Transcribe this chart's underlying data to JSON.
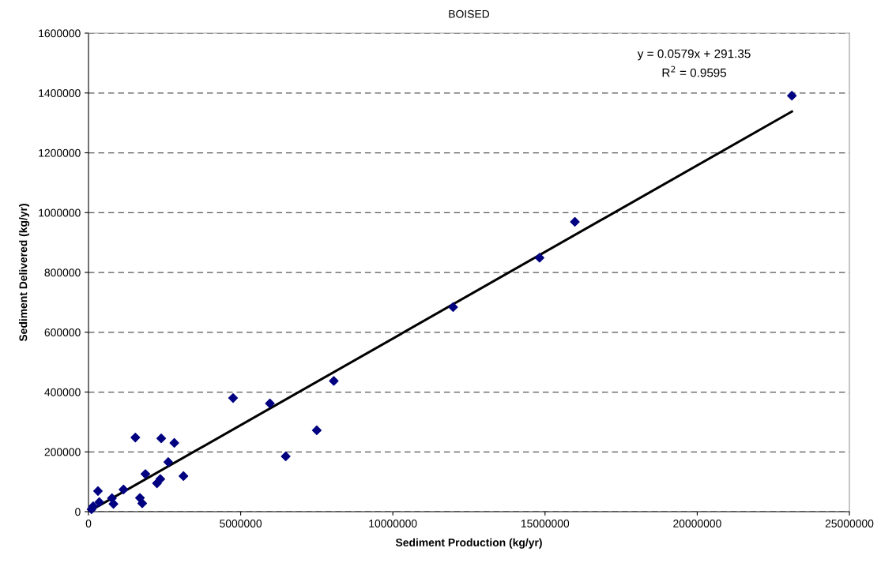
{
  "chart_data": {
    "type": "scatter",
    "title": "BOISED",
    "xlabel": "Sediment Production (kg/yr)",
    "ylabel": "Sediment Delivered (kg/yr)",
    "annotations": [
      "y = 0.0579x + 291.35",
      "R$^{2}$ = 0.9595"
    ],
    "xlim": [
      0,
      25000000
    ],
    "xticks": [
      0,
      5000000,
      10000000,
      15000000,
      20000000,
      25000000
    ],
    "ylim": [
      0,
      1600000
    ],
    "yticks": [
      0,
      200000,
      400000,
      600000,
      800000,
      1000000,
      1200000,
      1400000,
      1600000
    ],
    "grid": "y",
    "marker": "diamond",
    "series": [
      {
        "color": "#000080",
        "x": [
          100000,
          155000,
          311000,
          355000,
          770000,
          820000,
          1150000,
          1540000,
          1690000,
          1765000,
          1870000,
          2250000,
          2360000,
          2390000,
          2620000,
          2820000,
          3120000,
          4750000,
          5960000,
          6480000,
          7500000,
          8060000,
          11980000,
          14820000,
          15980000,
          23110000
        ],
        "values": [
          8000,
          18000,
          69000,
          32000,
          45000,
          26000,
          74000,
          248000,
          46000,
          28000,
          126000,
          95000,
          109000,
          245000,
          166000,
          230000,
          119000,
          380000,
          362000,
          185000,
          272000,
          437000,
          684000,
          849000,
          969000,
          1391000
        ]
      },
      {
        "type": "line",
        "color": "#000000",
        "x": [
          0,
          23110000
        ],
        "values": [
          0,
          1338000
        ],
        "line_style": "solid",
        "marker": "none"
      }
    ]
  }
}
